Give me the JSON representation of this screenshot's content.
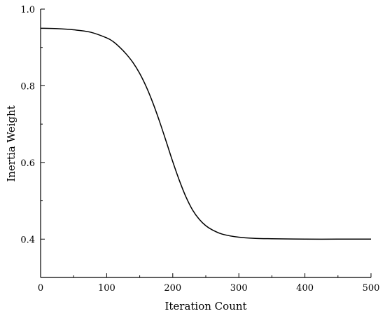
{
  "chart_data": {
    "type": "line",
    "title": "",
    "xlabel": "Iteration Count",
    "ylabel": "Inertia Weight",
    "xlim": [
      0,
      500
    ],
    "ylim": [
      0.3,
      1.0
    ],
    "x_ticks": [
      0,
      100,
      200,
      300,
      400,
      500
    ],
    "y_ticks": [
      0.4,
      0.6,
      0.8,
      1.0
    ],
    "x_tick_labels": [
      "0",
      "100",
      "200",
      "300",
      "400",
      "500"
    ],
    "y_tick_labels": [
      "0.4",
      "0.6",
      "0.8",
      "1.0"
    ],
    "grid": false,
    "legend": "none",
    "colors": {
      "line": "#000000",
      "axis": "#000000"
    },
    "series": [
      {
        "x": [
          0,
          25,
          50,
          75,
          100,
          110,
          120,
          130,
          140,
          150,
          160,
          170,
          180,
          190,
          200,
          210,
          220,
          230,
          240,
          250,
          260,
          275,
          300,
          325,
          350,
          400,
          450,
          500
        ],
        "values": [
          0.95,
          0.949,
          0.946,
          0.94,
          0.925,
          0.915,
          0.9,
          0.882,
          0.86,
          0.832,
          0.797,
          0.755,
          0.707,
          0.655,
          0.602,
          0.553,
          0.51,
          0.476,
          0.452,
          0.435,
          0.424,
          0.413,
          0.405,
          0.402,
          0.401,
          0.4,
          0.4,
          0.4
        ]
      }
    ]
  }
}
